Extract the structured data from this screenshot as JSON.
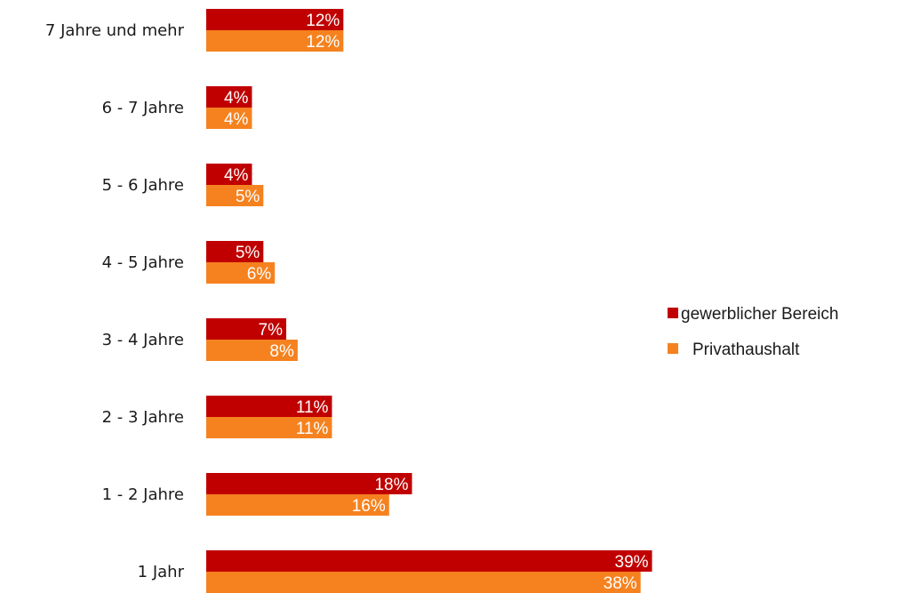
{
  "chart_data": {
    "type": "bar",
    "orientation": "horizontal",
    "categories": [
      "7 Jahre und mehr",
      "6 - 7 Jahre",
      "5 - 6 Jahre",
      "4 - 5 Jahre",
      "3 - 4 Jahre",
      "2 - 3 Jahre",
      "1 - 2 Jahre",
      "1 Jahr"
    ],
    "series": [
      {
        "name": "gewerblicher Bereich",
        "color": "#c00000",
        "values": [
          12,
          4,
          4,
          5,
          7,
          11,
          18,
          39
        ],
        "labels": [
          "12%",
          "4%",
          "4%",
          "5%",
          "7%",
          "11%",
          "18%",
          "39%"
        ]
      },
      {
        "name": "Privathaushalt",
        "color": "#f5821f",
        "values": [
          12,
          4,
          5,
          6,
          8,
          11,
          16,
          38
        ],
        "labels": [
          "12%",
          "4%",
          "5%",
          "6%",
          "8%",
          "11%",
          "16%",
          "38%"
        ]
      }
    ],
    "xlim": [
      0,
      40
    ],
    "grid": false,
    "legend_position": "right"
  }
}
